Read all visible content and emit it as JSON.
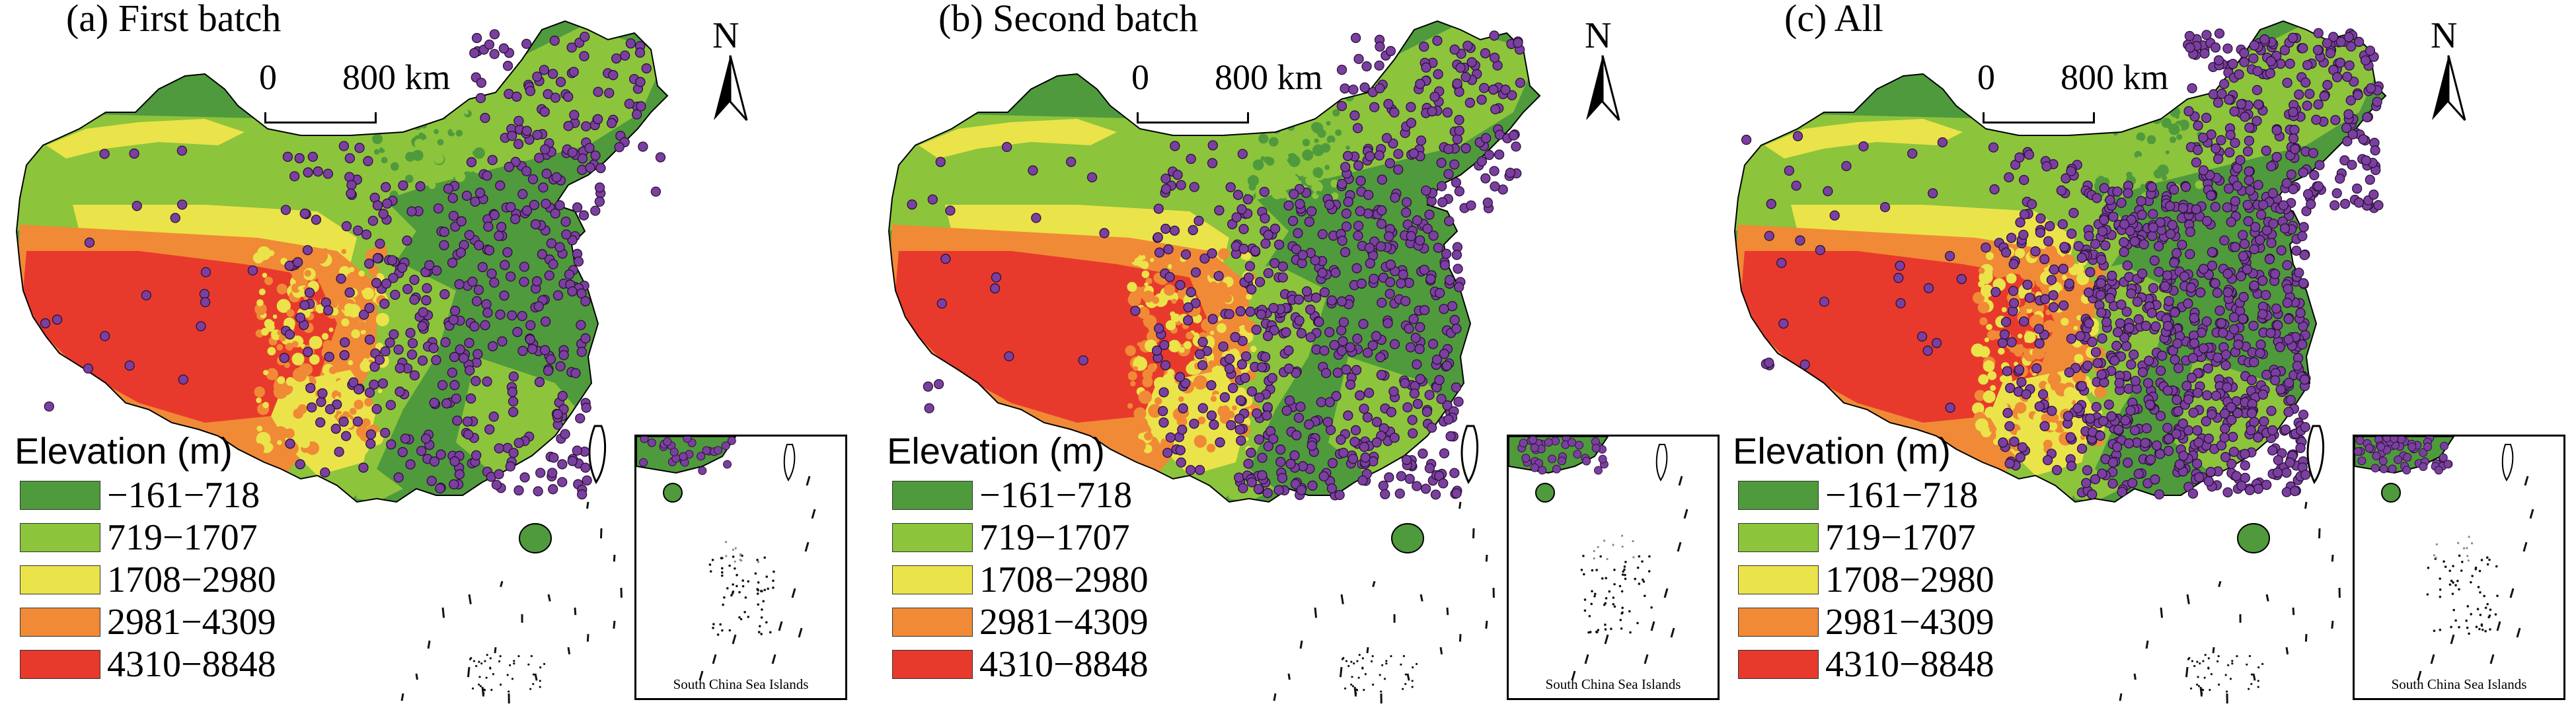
{
  "panels": [
    {
      "title": "(a) First batch",
      "density": "low"
    },
    {
      "title": "(b) Second batch",
      "density": "medium"
    },
    {
      "title": "(c) All",
      "density": "high"
    }
  ],
  "scale_bar": {
    "zero": "0",
    "distance": "800 km"
  },
  "north_arrow": {
    "letter": "N"
  },
  "legend": {
    "title": "Elevation (m)",
    "classes": [
      {
        "label": "−161−718",
        "color": "#4f9a3c"
      },
      {
        "label": "719−1707",
        "color": "#8cc43c"
      },
      {
        "label": "1708−2980",
        "color": "#ebe34a"
      },
      {
        "label": "2981−4309",
        "color": "#f08a36"
      },
      {
        "label": "4310−8848",
        "color": "#e83a2c"
      }
    ]
  },
  "inset": {
    "label": "South China Sea Islands"
  },
  "colors": {
    "points": "#7b3fa0",
    "point_outline": "#2a1236",
    "boundary": "#000000"
  }
}
